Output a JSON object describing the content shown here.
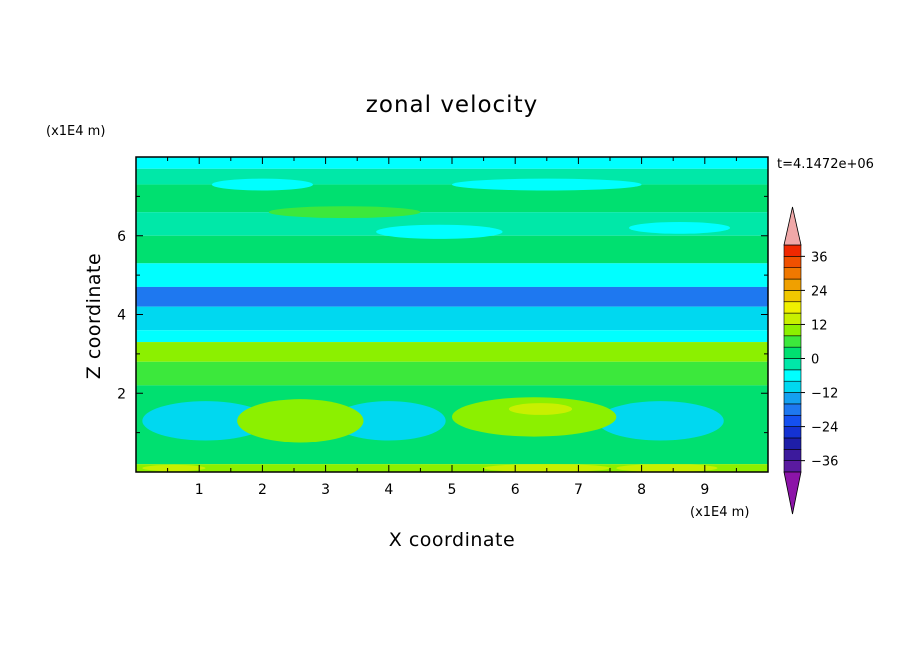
{
  "chart_data": {
    "type": "heatmap",
    "title": "zonal velocity",
    "xlabel": "X coordinate",
    "ylabel": "Z coordinate",
    "x_unit": "(x1E4 m)",
    "y_unit": "(x1E4 m)",
    "time_label": "t=4.1472e+06",
    "xlim": [
      0,
      10
    ],
    "ylim": [
      0,
      8
    ],
    "x_ticks": [
      "1",
      "2",
      "3",
      "4",
      "5",
      "6",
      "7",
      "8",
      "9"
    ],
    "y_ticks": [
      "2",
      "4",
      "6"
    ],
    "colorbar": {
      "labels": [
        "36",
        "24",
        "12",
        "0",
        "−12",
        "−24",
        "−36"
      ],
      "label_values": [
        36,
        24,
        12,
        0,
        -12,
        -24,
        -36
      ],
      "levels": [
        -40,
        -36,
        -32,
        -28,
        -24,
        -20,
        -16,
        -12,
        -8,
        -4,
        0,
        4,
        8,
        12,
        16,
        20,
        24,
        28,
        32,
        36,
        40
      ],
      "colors": [
        "#5a1aa0",
        "#3c1a9c",
        "#1e1ea8",
        "#1432d2",
        "#1450f0",
        "#1e78f0",
        "#14a0f0",
        "#00d8f0",
        "#00ffff",
        "#00e8a8",
        "#00e070",
        "#3ce83c",
        "#8cf000",
        "#c8f000",
        "#f0f000",
        "#f0c800",
        "#f0a000",
        "#f07800",
        "#f05000",
        "#f02800"
      ],
      "under_color": "#8c14a8",
      "over_color": "#f0a8a8",
      "extend": "both"
    },
    "bands": [
      {
        "z": [
          7.7,
          8.0
        ],
        "u": -5
      },
      {
        "z": [
          7.3,
          7.7
        ],
        "u": -2
      },
      {
        "z": [
          6.6,
          7.3
        ],
        "u": 2
      },
      {
        "z": [
          6.0,
          6.6
        ],
        "u": -2
      },
      {
        "z": [
          5.3,
          6.0
        ],
        "u": 2
      },
      {
        "z": [
          4.7,
          5.3
        ],
        "u": -6
      },
      {
        "z": [
          4.2,
          4.7
        ],
        "u": -18
      },
      {
        "z": [
          3.6,
          4.2
        ],
        "u": -10
      },
      {
        "z": [
          3.3,
          3.6
        ],
        "u": -6
      },
      {
        "z": [
          2.8,
          3.3
        ],
        "u": 10
      },
      {
        "z": [
          2.2,
          2.8
        ],
        "u": 5
      },
      {
        "z": [
          0.2,
          2.2
        ],
        "u": 2
      },
      {
        "z": [
          0.0,
          0.2
        ],
        "u": 9
      }
    ],
    "features": [
      {
        "x": 1.1,
        "z": 1.3,
        "rx": 1.0,
        "rz": 0.5,
        "u": -10
      },
      {
        "x": 4.0,
        "z": 1.3,
        "rx": 0.9,
        "rz": 0.5,
        "u": -10
      },
      {
        "x": 8.3,
        "z": 1.3,
        "rx": 1.0,
        "rz": 0.5,
        "u": -10
      },
      {
        "x": 2.6,
        "z": 1.3,
        "rx": 1.0,
        "rz": 0.55,
        "u": 8
      },
      {
        "x": 6.3,
        "z": 1.4,
        "rx": 1.3,
        "rz": 0.5,
        "u": 9
      },
      {
        "x": 6.4,
        "z": 1.6,
        "rx": 0.5,
        "rz": 0.15,
        "u": 13
      },
      {
        "x": 3.3,
        "z": 6.6,
        "rx": 1.2,
        "rz": 0.15,
        "u": 7
      },
      {
        "x": 2.0,
        "z": 7.3,
        "rx": 0.8,
        "rz": 0.15,
        "u": -5
      },
      {
        "x": 6.5,
        "z": 7.3,
        "rx": 1.5,
        "rz": 0.15,
        "u": -5
      },
      {
        "x": 4.8,
        "z": 6.1,
        "rx": 1.0,
        "rz": 0.18,
        "u": -5
      },
      {
        "x": 8.6,
        "z": 6.2,
        "rx": 0.8,
        "rz": 0.15,
        "u": -5
      },
      {
        "x": 6.5,
        "z": 0.1,
        "rx": 1.0,
        "rz": 0.1,
        "u": 14
      },
      {
        "x": 8.4,
        "z": 0.1,
        "rx": 0.8,
        "rz": 0.1,
        "u": 14
      },
      {
        "x": 0.6,
        "z": 0.1,
        "rx": 0.5,
        "rz": 0.08,
        "u": 14
      }
    ]
  }
}
